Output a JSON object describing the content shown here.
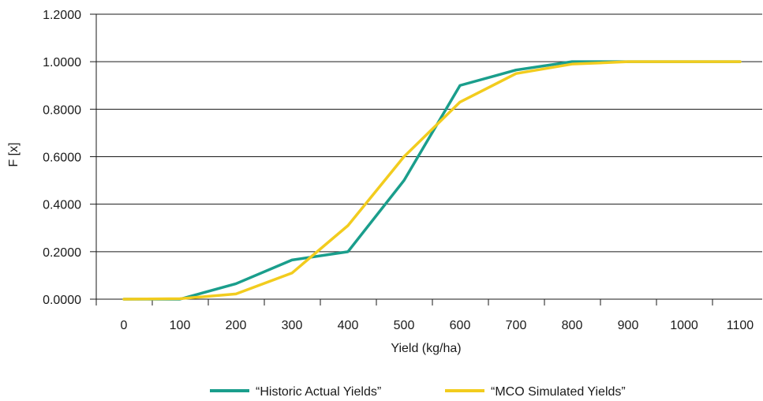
{
  "chart_data": {
    "type": "line",
    "title": "",
    "xlabel": "Yield (kg/ha)",
    "ylabel": "F [x]",
    "x_categories": [
      "0",
      "100",
      "200",
      "300",
      "400",
      "500",
      "600",
      "700",
      "800",
      "900",
      "1000",
      "1100"
    ],
    "y_ticks": [
      "0.0000",
      "0.2000",
      "0.4000",
      "0.6000",
      "0.8000",
      "1.0000",
      "1.2000"
    ],
    "ylim": [
      0,
      1.2
    ],
    "xlim": [
      0,
      1100
    ],
    "grid": "horizontal",
    "legend_position": "bottom",
    "series": [
      {
        "name": "“Historic Actual Yields”",
        "color": "#1a9e8c",
        "points": [
          [
            0,
            0.0
          ],
          [
            100,
            0.0
          ],
          [
            200,
            0.065
          ],
          [
            300,
            0.165
          ],
          [
            400,
            0.2
          ],
          [
            500,
            0.5
          ],
          [
            600,
            0.9
          ],
          [
            700,
            0.965
          ],
          [
            800,
            1.0
          ],
          [
            900,
            1.0
          ],
          [
            1000,
            1.0
          ],
          [
            1100,
            1.0
          ]
        ]
      },
      {
        "name": "“MCO Simulated Yields”",
        "color": "#f2cc1e",
        "points": [
          [
            0,
            0.0
          ],
          [
            100,
            0.002
          ],
          [
            200,
            0.022
          ],
          [
            300,
            0.11
          ],
          [
            400,
            0.31
          ],
          [
            500,
            0.6
          ],
          [
            600,
            0.83
          ],
          [
            700,
            0.95
          ],
          [
            800,
            0.99
          ],
          [
            900,
            1.0
          ],
          [
            1000,
            1.0
          ],
          [
            1100,
            1.0
          ]
        ]
      }
    ]
  }
}
